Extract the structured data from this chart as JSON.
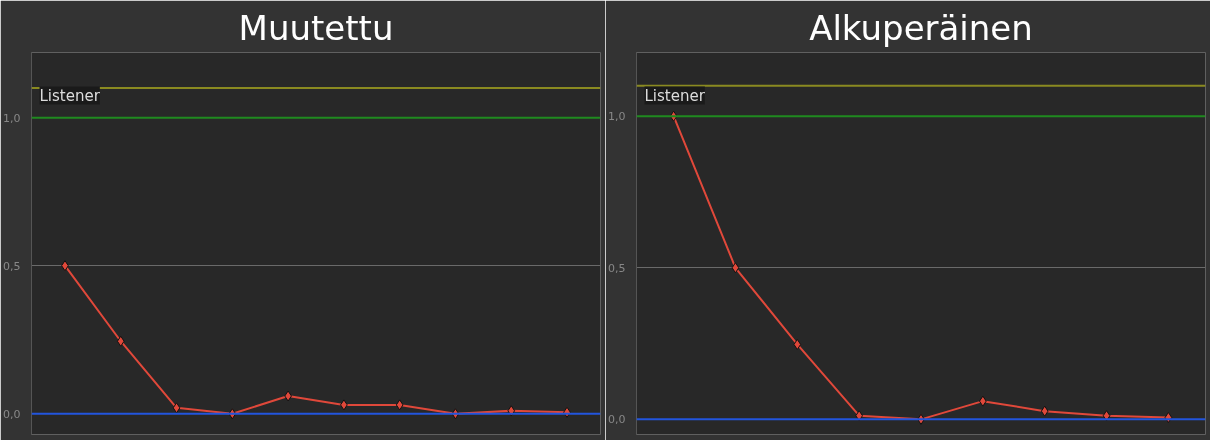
{
  "chart_data": [
    {
      "type": "line",
      "title": "Muutettu",
      "annotations": [
        "Listener"
      ],
      "categories": [
        null,
        null,
        null,
        null,
        null,
        null,
        null,
        null,
        null,
        null
      ],
      "ylim": [
        -0.07,
        1.22
      ],
      "yticks": [
        {
          "value": 0,
          "label": "0,0"
        },
        {
          "value": 0.5,
          "label": "0,5"
        },
        {
          "value": 1,
          "label": "1,0"
        }
      ],
      "grid": "y",
      "marker": "diamond",
      "line_style": "solid",
      "series": [
        {
          "color": "#e0483a",
          "values": [
            0.5,
            0.245,
            0.02,
            0,
            0.06,
            0.03,
            0.03,
            0,
            0.01,
            0.005
          ]
        }
      ],
      "ref_lines": [
        {
          "axis": "y",
          "value": 1.1,
          "color": "#8a8a20"
        },
        {
          "axis": "y",
          "value": 1.0,
          "color": "#1f8a1f"
        },
        {
          "axis": "y",
          "value": 0,
          "color": "#2255dd"
        }
      ]
    },
    {
      "type": "line",
      "title": "Alkuperäinen",
      "annotations": [
        "Listener"
      ],
      "categories": [
        null,
        null,
        null,
        null,
        null,
        null,
        null,
        null,
        null
      ],
      "ylim": [
        -0.05,
        1.21
      ],
      "yticks": [
        {
          "value": 0,
          "label": "0,0"
        },
        {
          "value": 0.5,
          "label": "0,5"
        },
        {
          "value": 1,
          "label": "1,0"
        }
      ],
      "grid": "y",
      "marker": "diamond",
      "line_style": "solid",
      "series": [
        {
          "color": "#e0483a",
          "values": [
            1.0,
            0.5,
            0.247,
            0.012,
            0,
            0.06,
            0.027,
            0.012,
            0.006
          ]
        }
      ],
      "ref_lines": [
        {
          "axis": "y",
          "value": 1.1,
          "color": "#8a8a20"
        },
        {
          "axis": "y",
          "value": 1.0,
          "color": "#1f8a1f"
        },
        {
          "axis": "y",
          "value": 0,
          "color": "#2255dd"
        }
      ]
    }
  ]
}
